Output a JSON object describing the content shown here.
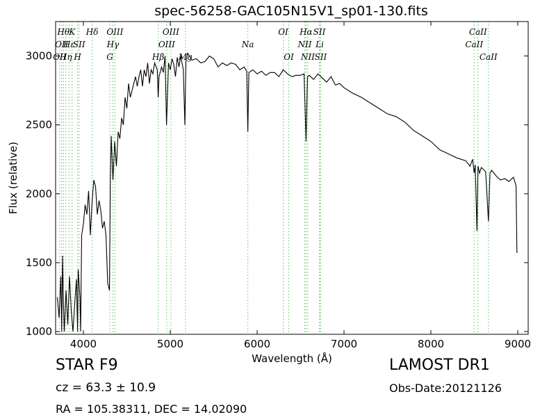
{
  "chart_data": {
    "type": "line",
    "title": "spec-56258-GAC105N15V1_sp01-130.fits",
    "xlabel": "Wavelength (Å)",
    "ylabel": "Flux (relative)",
    "xlim": [
      3680,
      9120
    ],
    "ylim": [
      980,
      3250
    ],
    "xticks": [
      4000,
      5000,
      6000,
      7000,
      8000,
      9000
    ],
    "yticks": [
      1000,
      1500,
      2000,
      2500,
      3000
    ],
    "grid": false,
    "series_color": "#000000",
    "line_marker_color": "#5cc15c",
    "series": [
      {
        "x": [
          3700,
          3720,
          3740,
          3750,
          3760,
          3770,
          3780,
          3800,
          3820,
          3840,
          3860,
          3880,
          3900,
          3920,
          3933,
          3940,
          3960,
          3968,
          3980,
          4000,
          4020,
          4040,
          4060,
          4080,
          4101,
          4120,
          4140,
          4160,
          4180,
          4200,
          4220,
          4240,
          4260,
          4280,
          4300,
          4310,
          4320,
          4340,
          4361,
          4380,
          4400,
          4420,
          4440,
          4460,
          4480,
          4500,
          4520,
          4540,
          4560,
          4580,
          4600,
          4620,
          4640,
          4660,
          4680,
          4700,
          4720,
          4740,
          4760,
          4780,
          4800,
          4820,
          4850,
          4861,
          4870,
          4900,
          4920,
          4940,
          4957,
          4980,
          5000,
          5020,
          5040,
          5060,
          5080,
          5100,
          5120,
          5150,
          5168,
          5180,
          5200,
          5250,
          5300,
          5350,
          5400,
          5450,
          5500,
          5550,
          5600,
          5650,
          5700,
          5750,
          5800,
          5850,
          5880,
          5893,
          5905,
          5950,
          6000,
          6050,
          6100,
          6150,
          6200,
          6250,
          6300,
          6350,
          6400,
          6450,
          6500,
          6540,
          6563,
          6580,
          6600,
          6650,
          6700,
          6750,
          6800,
          6850,
          6900,
          6950,
          7000,
          7100,
          7200,
          7300,
          7400,
          7500,
          7600,
          7700,
          7800,
          7900,
          8000,
          8100,
          8200,
          8300,
          8400,
          8450,
          8480,
          8498,
          8510,
          8530,
          8542,
          8560,
          8580,
          8600,
          8630,
          8662,
          8680,
          8700,
          8750,
          8800,
          8850,
          8900,
          8950,
          8980,
          8990
        ],
        "values": [
          1250,
          1100,
          1400,
          1000,
          1550,
          1200,
          1000,
          1300,
          1050,
          1400,
          1150,
          1000,
          1200,
          1380,
          1000,
          1450,
          1250,
          1000,
          1700,
          1780,
          1920,
          1850,
          2020,
          1700,
          1950,
          2100,
          2050,
          1850,
          1950,
          1880,
          1750,
          1800,
          1700,
          1350,
          1300,
          2100,
          2420,
          2100,
          2380,
          2200,
          2450,
          2400,
          2550,
          2500,
          2700,
          2620,
          2800,
          2700,
          2750,
          2800,
          2850,
          2780,
          2850,
          2900,
          2780,
          2900,
          2850,
          2950,
          2800,
          2900,
          2870,
          2950,
          2900,
          2700,
          2850,
          2920,
          2880,
          3000,
          2500,
          2950,
          2900,
          2980,
          2940,
          2850,
          2990,
          2920,
          3000,
          2900,
          2500,
          2960,
          3020,
          2970,
          2980,
          2950,
          2960,
          3000,
          2980,
          2920,
          2950,
          2930,
          2950,
          2940,
          2900,
          2920,
          2890,
          2450,
          2880,
          2900,
          2870,
          2890,
          2860,
          2880,
          2880,
          2850,
          2900,
          2870,
          2850,
          2860,
          2860,
          2870,
          2380,
          2850,
          2860,
          2830,
          2870,
          2840,
          2810,
          2850,
          2790,
          2800,
          2770,
          2730,
          2700,
          2660,
          2620,
          2580,
          2560,
          2520,
          2460,
          2420,
          2380,
          2320,
          2290,
          2260,
          2240,
          2200,
          2250,
          2150,
          2210,
          1730,
          2200,
          2150,
          2190,
          2180,
          2160,
          1800,
          2150,
          2170,
          2130,
          2100,
          2110,
          2090,
          2120,
          2060,
          1570
        ]
      }
    ],
    "line_markers": [
      {
        "x": 3727,
        "label": "OII",
        "row": 3
      },
      {
        "x": 3750,
        "label": "OII",
        "row": 2
      },
      {
        "x": 3770,
        "label": "Hθ",
        "row": 1
      },
      {
        "x": 3798,
        "label": "Hη",
        "row": 3
      },
      {
        "x": 3835,
        "label": "Hε",
        "row": 2
      },
      {
        "x": 3870,
        "label": "K",
        "row": 1
      },
      {
        "x": 3933,
        "label": "H",
        "row": 3
      },
      {
        "x": 3950,
        "label": "SII",
        "row": 2
      },
      {
        "x": 4101,
        "label": "Hδ",
        "row": 1
      },
      {
        "x": 4304,
        "label": "G",
        "row": 3
      },
      {
        "x": 4340,
        "label": "Hγ",
        "row": 2
      },
      {
        "x": 4363,
        "label": "OIII",
        "row": 1
      },
      {
        "x": 4861,
        "label": "Hβ",
        "row": 3
      },
      {
        "x": 4959,
        "label": "OIII",
        "row": 2
      },
      {
        "x": 5007,
        "label": "OIII",
        "row": 1
      },
      {
        "x": 5175,
        "label": "Mg",
        "row": 3
      },
      {
        "x": 5893,
        "label": "Na",
        "row": 2
      },
      {
        "x": 6300,
        "label": "OI",
        "row": 1
      },
      {
        "x": 6364,
        "label": "OI",
        "row": 3
      },
      {
        "x": 6548,
        "label": "NII",
        "row": 2
      },
      {
        "x": 6563,
        "label": "Hα",
        "row": 1
      },
      {
        "x": 6583,
        "label": "NII",
        "row": 3
      },
      {
        "x": 6716,
        "label": "SII",
        "row": 1
      },
      {
        "x": 6731,
        "label": "SII",
        "row": 3
      },
      {
        "x": 6720,
        "label": "Li",
        "row": 2
      },
      {
        "x": 8498,
        "label": "CaII",
        "row": 2
      },
      {
        "x": 8542,
        "label": "CaII",
        "row": 1
      },
      {
        "x": 8662,
        "label": "CaII",
        "row": 3
      }
    ]
  },
  "info": {
    "object_class": "STAR   F9",
    "survey": "LAMOST DR1",
    "redshift": "cz = 63.3  ± 10.9",
    "obs_date": "Obs-Date:20121126",
    "coords": "RA = 105.38311, DEC = 14.02090"
  }
}
